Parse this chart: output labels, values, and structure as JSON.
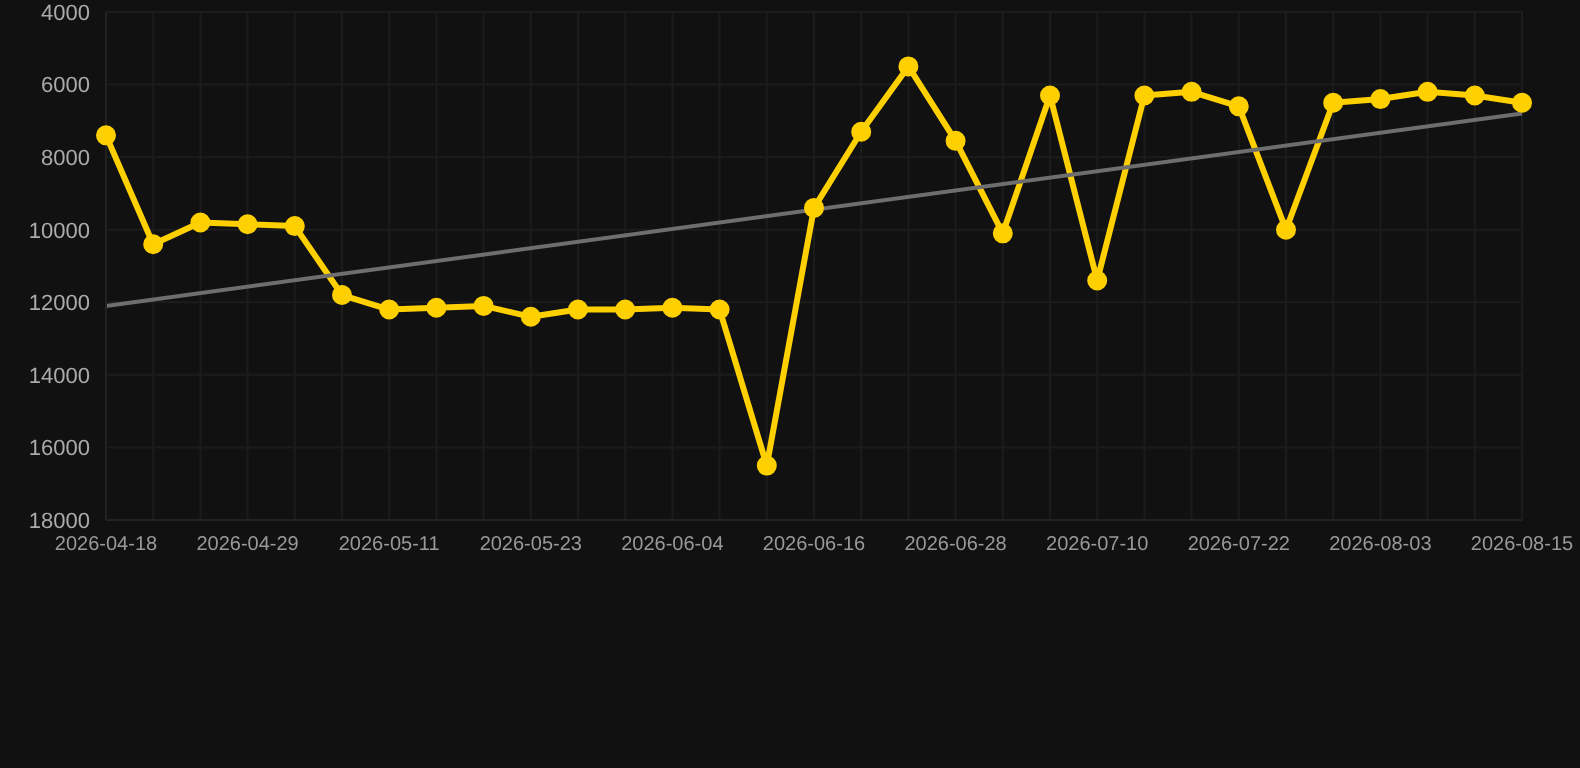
{
  "chart_data": {
    "type": "line",
    "categories": [
      "2026-04-18",
      null,
      null,
      "2026-04-29",
      null,
      null,
      "2026-05-11",
      null,
      null,
      "2026-05-23",
      null,
      null,
      "2026-06-04",
      null,
      null,
      "2026-06-16",
      null,
      null,
      "2026-06-28",
      null,
      null,
      "2026-07-10",
      null,
      null,
      "2026-07-22",
      null,
      null,
      "2026-08-03",
      null,
      null,
      "2026-08-15"
    ],
    "series": [
      {
        "color": "#ffd000",
        "marker": "circle",
        "values": [
          7400,
          10400,
          9800,
          9850,
          9900,
          11800,
          12200,
          12150,
          12100,
          12400,
          12200,
          12200,
          12150,
          12200,
          16500,
          9400,
          7300,
          5500,
          7550,
          10100,
          6300,
          11400,
          6300,
          6200,
          6600,
          10000,
          6500,
          6400,
          6200,
          6300,
          6500
        ]
      },
      {
        "type": "line",
        "color": "#6e6e6e",
        "marker": "none",
        "values": [
          12100,
          null,
          null,
          null,
          null,
          null,
          null,
          null,
          null,
          null,
          null,
          null,
          null,
          null,
          null,
          null,
          null,
          null,
          null,
          null,
          null,
          null,
          null,
          null,
          null,
          null,
          null,
          null,
          null,
          null,
          6800
        ]
      }
    ],
    "ylim": [
      18000,
      4000
    ],
    "yticks": [
      4000,
      6000,
      8000,
      10000,
      12000,
      14000,
      16000,
      18000
    ],
    "grid": true
  }
}
